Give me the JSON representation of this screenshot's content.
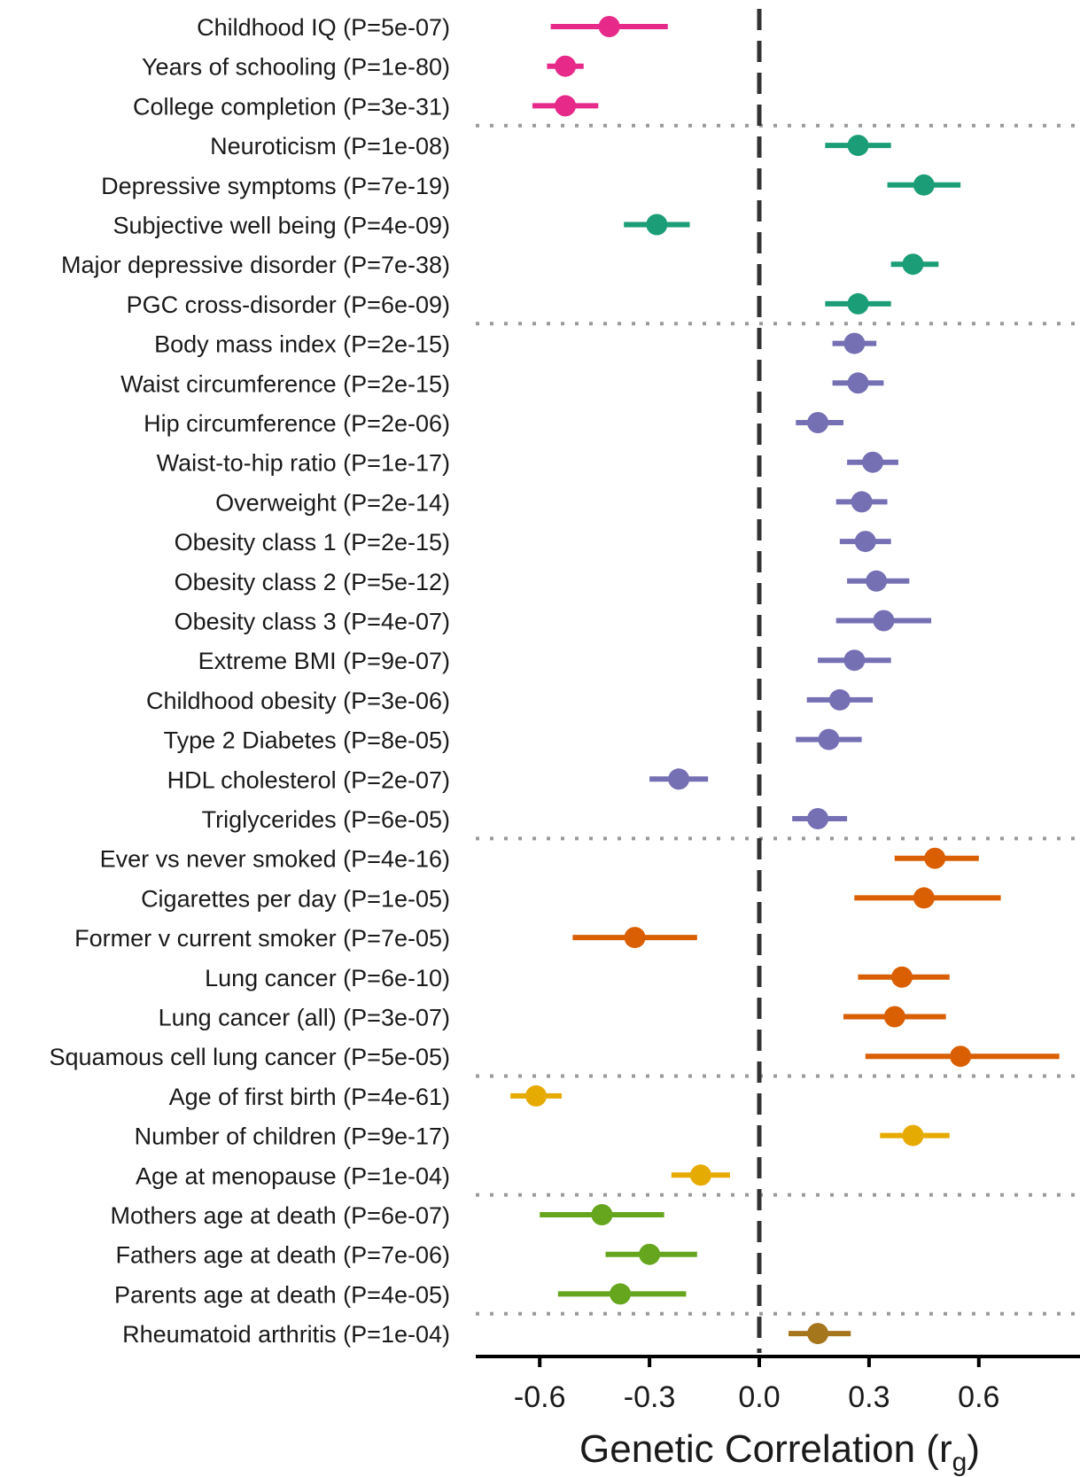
{
  "chart_data": {
    "type": "scatter",
    "subtype": "forest-plot",
    "xlabel": "Genetic Correlation (rg)",
    "xlim": [
      -0.77,
      0.8
    ],
    "xticks": [
      -0.6,
      -0.3,
      0.0,
      0.3,
      0.6
    ],
    "xtick_labels": [
      "-0.6",
      "-0.3",
      "0.0",
      "0.3",
      "0.6"
    ],
    "reference_line": 0.0,
    "grid": false,
    "group_colors": [
      "#e7298a",
      "#1b9e77",
      "#7570b3",
      "#d95f02",
      "#e6ab02",
      "#66a61e",
      "#a6761d"
    ],
    "rows": [
      {
        "label": "Childhood IQ (P=5e-07)",
        "rg": -0.41,
        "lo": -0.57,
        "hi": -0.25,
        "group": 0
      },
      {
        "label": "Years of schooling (P=1e-80)",
        "rg": -0.53,
        "lo": -0.58,
        "hi": -0.48,
        "group": 0
      },
      {
        "label": "College completion (P=3e-31)",
        "rg": -0.53,
        "lo": -0.62,
        "hi": -0.44,
        "group": 0
      },
      {
        "label": "Neuroticism (P=1e-08)",
        "rg": 0.27,
        "lo": 0.18,
        "hi": 0.36,
        "group": 1
      },
      {
        "label": "Depressive symptoms (P=7e-19)",
        "rg": 0.45,
        "lo": 0.35,
        "hi": 0.55,
        "group": 1
      },
      {
        "label": "Subjective well being (P=4e-09)",
        "rg": -0.28,
        "lo": -0.37,
        "hi": -0.19,
        "group": 1
      },
      {
        "label": "Major depressive disorder (P=7e-38)",
        "rg": 0.42,
        "lo": 0.36,
        "hi": 0.49,
        "group": 1
      },
      {
        "label": "PGC cross-disorder (P=6e-09)",
        "rg": 0.27,
        "lo": 0.18,
        "hi": 0.36,
        "group": 1
      },
      {
        "label": "Body mass index (P=2e-15)",
        "rg": 0.26,
        "lo": 0.2,
        "hi": 0.32,
        "group": 2
      },
      {
        "label": "Waist circumference (P=2e-15)",
        "rg": 0.27,
        "lo": 0.2,
        "hi": 0.34,
        "group": 2
      },
      {
        "label": "Hip circumference (P=2e-06)",
        "rg": 0.16,
        "lo": 0.1,
        "hi": 0.23,
        "group": 2
      },
      {
        "label": "Waist-to-hip ratio (P=1e-17)",
        "rg": 0.31,
        "lo": 0.24,
        "hi": 0.38,
        "group": 2
      },
      {
        "label": "Overweight (P=2e-14)",
        "rg": 0.28,
        "lo": 0.21,
        "hi": 0.35,
        "group": 2
      },
      {
        "label": "Obesity class 1 (P=2e-15)",
        "rg": 0.29,
        "lo": 0.22,
        "hi": 0.36,
        "group": 2
      },
      {
        "label": "Obesity class 2 (P=5e-12)",
        "rg": 0.32,
        "lo": 0.24,
        "hi": 0.41,
        "group": 2
      },
      {
        "label": "Obesity class 3 (P=4e-07)",
        "rg": 0.34,
        "lo": 0.21,
        "hi": 0.47,
        "group": 2
      },
      {
        "label": "Extreme BMI (P=9e-07)",
        "rg": 0.26,
        "lo": 0.16,
        "hi": 0.36,
        "group": 2
      },
      {
        "label": "Childhood obesity (P=3e-06)",
        "rg": 0.22,
        "lo": 0.13,
        "hi": 0.31,
        "group": 2
      },
      {
        "label": "Type 2 Diabetes (P=8e-05)",
        "rg": 0.19,
        "lo": 0.1,
        "hi": 0.28,
        "group": 2
      },
      {
        "label": "HDL cholesterol (P=2e-07)",
        "rg": -0.22,
        "lo": -0.3,
        "hi": -0.14,
        "group": 2
      },
      {
        "label": "Triglycerides (P=6e-05)",
        "rg": 0.16,
        "lo": 0.09,
        "hi": 0.24,
        "group": 2
      },
      {
        "label": "Ever vs never smoked (P=4e-16)",
        "rg": 0.48,
        "lo": 0.37,
        "hi": 0.6,
        "group": 3
      },
      {
        "label": "Cigarettes per day (P=1e-05)",
        "rg": 0.45,
        "lo": 0.26,
        "hi": 0.66,
        "group": 3
      },
      {
        "label": "Former v current smoker (P=7e-05)",
        "rg": -0.34,
        "lo": -0.51,
        "hi": -0.17,
        "group": 3
      },
      {
        "label": "Lung cancer (P=6e-10)",
        "rg": 0.39,
        "lo": 0.27,
        "hi": 0.52,
        "group": 3
      },
      {
        "label": "Lung cancer (all) (P=3e-07)",
        "rg": 0.37,
        "lo": 0.23,
        "hi": 0.51,
        "group": 3
      },
      {
        "label": "Squamous cell lung cancer (P=5e-05)",
        "rg": 0.55,
        "lo": 0.29,
        "hi": 0.82,
        "group": 3
      },
      {
        "label": "Age of first birth (P=4e-61)",
        "rg": -0.61,
        "lo": -0.68,
        "hi": -0.54,
        "group": 4
      },
      {
        "label": "Number of children (P=9e-17)",
        "rg": 0.42,
        "lo": 0.33,
        "hi": 0.52,
        "group": 4
      },
      {
        "label": "Age at menopause (P=1e-04)",
        "rg": -0.16,
        "lo": -0.24,
        "hi": -0.08,
        "group": 4
      },
      {
        "label": "Mothers age at death (P=6e-07)",
        "rg": -0.43,
        "lo": -0.6,
        "hi": -0.26,
        "group": 5
      },
      {
        "label": "Fathers age at death (P=7e-06)",
        "rg": -0.3,
        "lo": -0.42,
        "hi": -0.17,
        "group": 5
      },
      {
        "label": "Parents age at death (P=4e-05)",
        "rg": -0.38,
        "lo": -0.55,
        "hi": -0.2,
        "group": 5
      },
      {
        "label": "Rheumatoid arthritis (P=1e-04)",
        "rg": 0.16,
        "lo": 0.08,
        "hi": 0.25,
        "group": 6
      }
    ]
  }
}
